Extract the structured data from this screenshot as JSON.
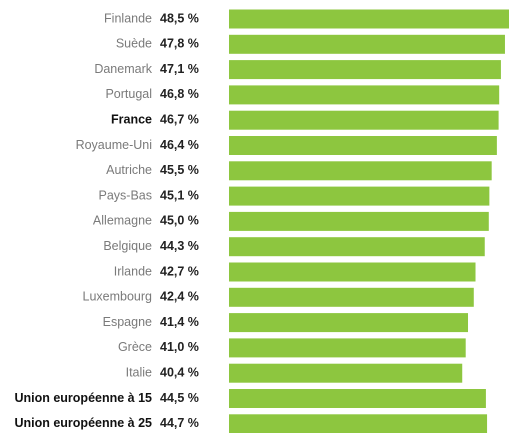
{
  "chart_data": {
    "type": "bar",
    "orientation": "horizontal",
    "categories": [
      "Finlande",
      "Suède",
      "Danemark",
      "Portugal",
      "France",
      "Royaume-Uni",
      "Autriche",
      "Pays-Bas",
      "Allemagne",
      "Belgique",
      "Irlande",
      "Luxembourg",
      "Espagne",
      "Grèce",
      "Italie",
      "Union européenne à 15",
      "Union européenne à 25"
    ],
    "values": [
      48.5,
      47.8,
      47.1,
      46.8,
      46.7,
      46.4,
      45.5,
      45.1,
      45.0,
      44.3,
      42.7,
      42.4,
      41.4,
      41.0,
      40.4,
      44.5,
      44.7
    ],
    "value_labels": [
      "48,5 %",
      "47,8 %",
      "47,1 %",
      "46,8 %",
      "46,7 %",
      "46,4 %",
      "45,5 %",
      "45,1 %",
      "45,0 %",
      "44,3 %",
      "42,7 %",
      "42,4 %",
      "41,4 %",
      "41,0 %",
      "40,4 %",
      "44,5 %",
      "44,7 %"
    ],
    "highlight": [
      "France",
      "Union européenne à 15",
      "Union européenne à 25"
    ],
    "color": "#8dc63f",
    "xlim": [
      0,
      48.5
    ]
  }
}
